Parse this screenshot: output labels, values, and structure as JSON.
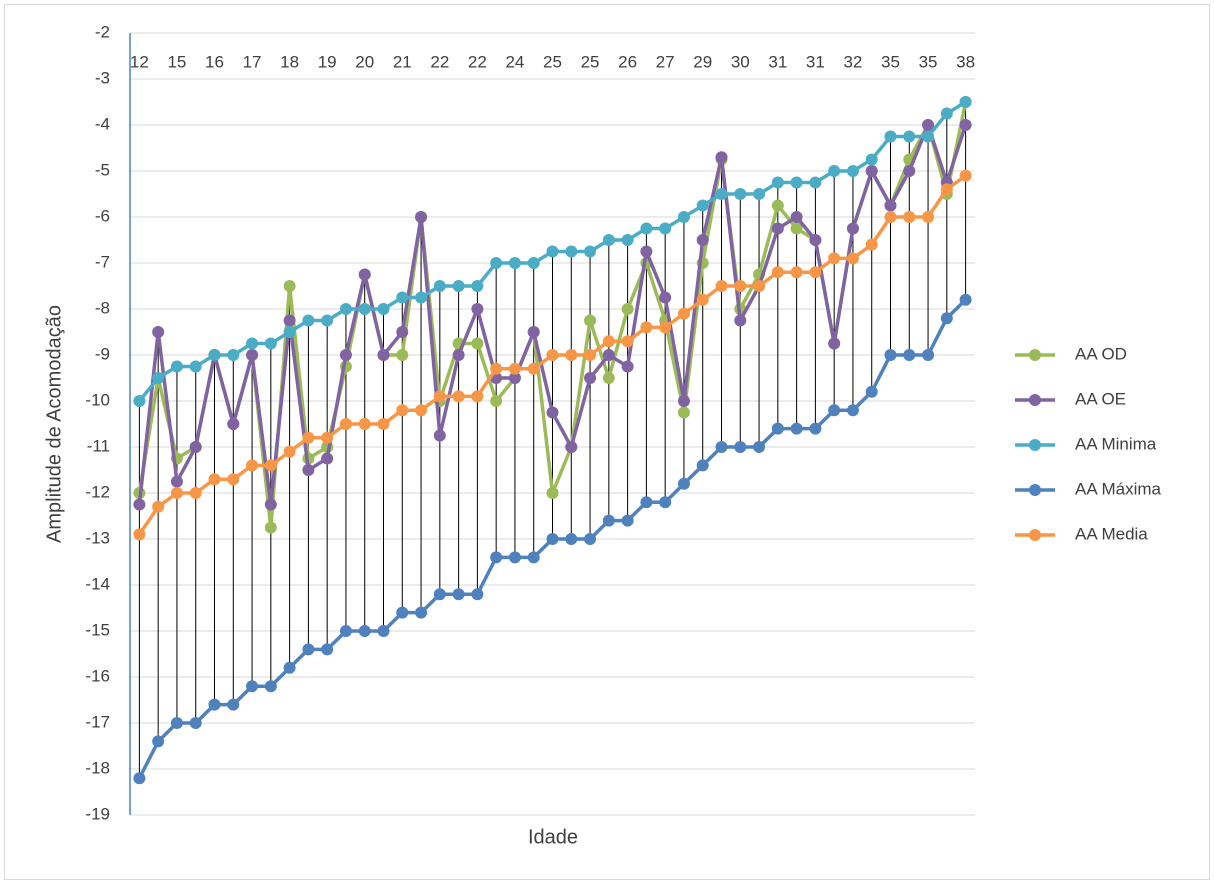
{
  "chart_data": {
    "type": "line",
    "x_label": "Idade",
    "y_label": "Amplitude de Acomodação",
    "categories": [
      "12",
      null,
      "15",
      null,
      "16",
      null,
      "17",
      null,
      "18",
      null,
      "19",
      null,
      "20",
      null,
      "21",
      null,
      "22",
      null,
      "22",
      null,
      "24",
      null,
      "25",
      null,
      "25",
      null,
      "26",
      null,
      "27",
      null,
      "29",
      null,
      "30",
      null,
      "31",
      null,
      "31",
      null,
      "32",
      null,
      "35",
      null,
      "35",
      null,
      "38"
    ],
    "series": [
      {
        "name": "AA OD",
        "color": "#9bbb59",
        "values": [
          -12,
          -9.5,
          -11.25,
          -11,
          -9,
          -10.5,
          -9,
          -12.75,
          -7.5,
          -11.25,
          -11,
          -9.25,
          -7.25,
          -9,
          -9,
          -6,
          -10,
          -8.75,
          -8.75,
          -10,
          -9.5,
          -8.5,
          -12,
          -11,
          -8.25,
          -9.5,
          -8,
          -7,
          -8.25,
          -10.25,
          -7,
          -4.75,
          -8,
          -7.25,
          -5.75,
          -6.25,
          -6.5,
          -8.75,
          -6.25,
          -5,
          -5.75,
          -4.75,
          -4,
          -5.5,
          -3.5
        ]
      },
      {
        "name": "AA OE",
        "color": "#8064a2",
        "values": [
          -12.25,
          -8.5,
          -11.75,
          -11,
          -9,
          -10.5,
          -9,
          -12.25,
          -8.25,
          -11.5,
          -11.25,
          -9,
          -7.25,
          -9,
          -8.5,
          -6,
          -10.75,
          -9,
          -8,
          -9.5,
          -9.5,
          -8.5,
          -10.25,
          -11,
          -9.5,
          -9,
          -9.25,
          -6.75,
          -7.75,
          -10,
          -6.5,
          -4.7,
          -8.25,
          -7.5,
          -6.25,
          -6,
          -6.5,
          -8.75,
          -6.25,
          -5,
          -5.75,
          -5,
          -4,
          -5.25,
          -4
        ]
      },
      {
        "name": "AA Minima",
        "color": "#4bacc6",
        "values": [
          -10,
          -9.5,
          -9.25,
          -9.25,
          -9,
          -9,
          -8.75,
          -8.75,
          -8.5,
          -8.25,
          -8.25,
          -8,
          -8,
          -8,
          -7.75,
          -7.75,
          -7.5,
          -7.5,
          -7.5,
          -7,
          -7,
          -7,
          -6.75,
          -6.75,
          -6.75,
          -6.5,
          -6.5,
          -6.25,
          -6.25,
          -6,
          -5.75,
          -5.5,
          -5.5,
          -5.5,
          -5.25,
          -5.25,
          -5.25,
          -5,
          -5,
          -4.75,
          -4.25,
          -4.25,
          -4.25,
          -3.75,
          -3.5
        ]
      },
      {
        "name": "AA Máxima",
        "color": "#4f81bd",
        "values": [
          -18.2,
          -17.4,
          -17,
          -17,
          -16.6,
          -16.6,
          -16.2,
          -16.2,
          -15.8,
          -15.4,
          -15.4,
          -15,
          -15,
          -15,
          -14.6,
          -14.6,
          -14.2,
          -14.2,
          -14.2,
          -13.4,
          -13.4,
          -13.4,
          -13,
          -13,
          -13,
          -12.6,
          -12.6,
          -12.2,
          -12.2,
          -11.8,
          -11.4,
          -11,
          -11,
          -11,
          -10.6,
          -10.6,
          -10.6,
          -10.2,
          -10.2,
          -9.8,
          -9,
          -9,
          -9,
          -8.2,
          -7.8
        ]
      },
      {
        "name": "AA Media",
        "color": "#f79646",
        "values": [
          -12.9,
          -12.3,
          -12,
          -12,
          -11.7,
          -11.7,
          -11.4,
          -11.4,
          -11.1,
          -10.8,
          -10.8,
          -10.5,
          -10.5,
          -10.5,
          -10.2,
          -10.2,
          -9.9,
          -9.9,
          -9.9,
          -9.3,
          -9.3,
          -9.3,
          -9,
          -9,
          -9,
          -8.7,
          -8.7,
          -8.4,
          -8.4,
          -8.1,
          -7.8,
          -7.5,
          -7.5,
          -7.5,
          -7.2,
          -7.2,
          -7.2,
          -6.9,
          -6.9,
          -6.6,
          -6,
          -6,
          -6,
          -5.4,
          -5.1
        ]
      }
    ],
    "ylim": [
      -19,
      -2
    ],
    "yticks": [
      -2,
      -3,
      -4,
      -5,
      -6,
      -7,
      -8,
      -9,
      -10,
      -11,
      -12,
      -13,
      -14,
      -15,
      -16,
      -17,
      -18,
      -19
    ],
    "grid": true,
    "high_low_lines": true,
    "legend": "right"
  }
}
